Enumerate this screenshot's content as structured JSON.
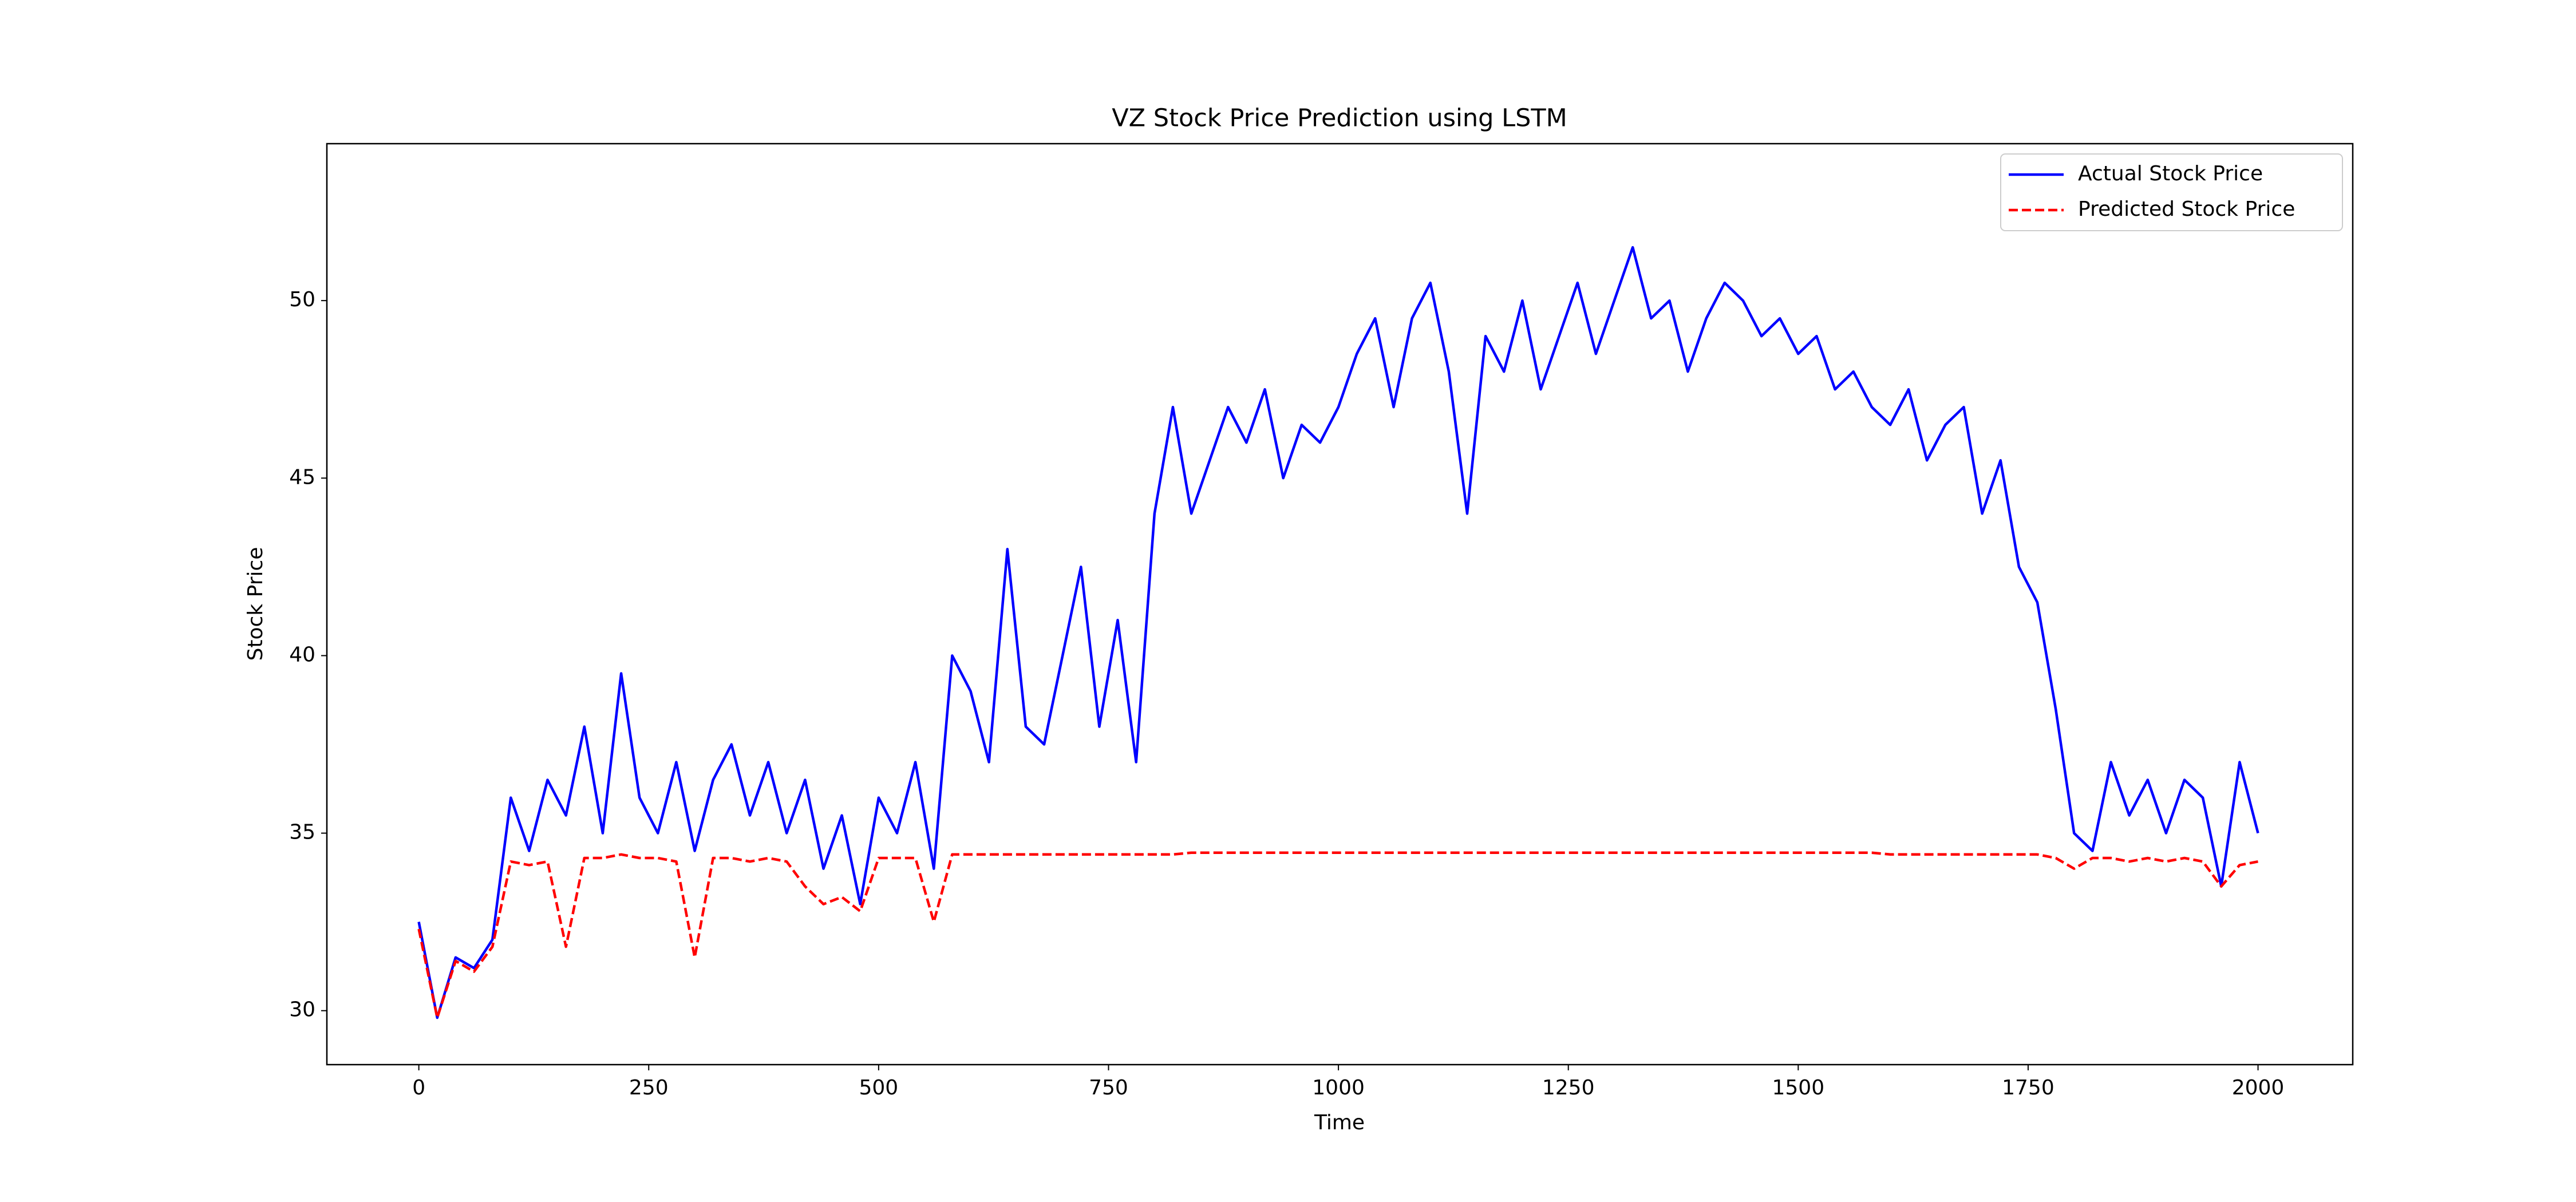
{
  "chart_data": {
    "type": "line",
    "title": "VZ Stock Price Prediction using LSTM",
    "x_label": "Time",
    "y_label": "Stock Price",
    "x": [
      0,
      20,
      40,
      60,
      80,
      100,
      120,
      140,
      160,
      180,
      200,
      220,
      240,
      260,
      280,
      300,
      320,
      340,
      360,
      380,
      400,
      420,
      440,
      460,
      480,
      500,
      520,
      540,
      560,
      580,
      600,
      620,
      640,
      660,
      680,
      700,
      720,
      740,
      760,
      780,
      800,
      820,
      840,
      860,
      880,
      900,
      920,
      940,
      960,
      980,
      1000,
      1020,
      1040,
      1060,
      1080,
      1100,
      1120,
      1140,
      1160,
      1180,
      1200,
      1220,
      1240,
      1260,
      1280,
      1300,
      1320,
      1340,
      1360,
      1380,
      1400,
      1420,
      1440,
      1460,
      1480,
      1500,
      1520,
      1540,
      1560,
      1580,
      1600,
      1620,
      1640,
      1660,
      1680,
      1700,
      1720,
      1740,
      1760,
      1780,
      1800,
      1820,
      1840,
      1860,
      1880,
      1900,
      1920,
      1940,
      1960,
      1980,
      2000
    ],
    "series": [
      {
        "name": "Actual Stock Price",
        "color": "#0000ff",
        "dash": false,
        "values": [
          32.5,
          29.8,
          31.5,
          31.2,
          32,
          36,
          34.5,
          36.5,
          35.5,
          38,
          35,
          39.5,
          36,
          35,
          37,
          34.5,
          36.5,
          37.5,
          35.5,
          37,
          35,
          36.5,
          34,
          35.5,
          33,
          36,
          35,
          37,
          34,
          40,
          39,
          37,
          43,
          38,
          37.5,
          40,
          42.5,
          38,
          41,
          37,
          44,
          47,
          44,
          45.5,
          47,
          46,
          47.5,
          45,
          46.5,
          46,
          47,
          48.5,
          49.5,
          47,
          49.5,
          50.5,
          48,
          44,
          49,
          48,
          50,
          47.5,
          49,
          50.5,
          48.5,
          50,
          51.5,
          49.5,
          50,
          48,
          49.5,
          50.5,
          50,
          49,
          49.5,
          48.5,
          49,
          47.5,
          48,
          47,
          46.5,
          47.5,
          45.5,
          46.5,
          47,
          44,
          45.5,
          42.5,
          41.5,
          38.5,
          35,
          34.5,
          37,
          35.5,
          36.5,
          35,
          36.5,
          36,
          33.5,
          37,
          35
        ]
      },
      {
        "name": "Predicted Stock Price",
        "color": "#ff0000",
        "dash": true,
        "values": [
          32.3,
          29.8,
          31.4,
          31.1,
          31.8,
          34.2,
          34.1,
          34.2,
          31.8,
          34.3,
          34.3,
          34.4,
          34.3,
          34.3,
          34.2,
          31.5,
          34.3,
          34.3,
          34.2,
          34.3,
          34.2,
          33.5,
          33,
          33.2,
          32.8,
          34.3,
          34.3,
          34.3,
          32.5,
          34.4,
          34.4,
          34.4,
          34.4,
          34.4,
          34.4,
          34.4,
          34.4,
          34.4,
          34.4,
          34.4,
          34.4,
          34.4,
          34.45,
          34.45,
          34.45,
          34.45,
          34.45,
          34.45,
          34.45,
          34.45,
          34.45,
          34.45,
          34.45,
          34.45,
          34.45,
          34.45,
          34.45,
          34.45,
          34.45,
          34.45,
          34.45,
          34.45,
          34.45,
          34.45,
          34.45,
          34.45,
          34.45,
          34.45,
          34.45,
          34.45,
          34.45,
          34.45,
          34.45,
          34.45,
          34.45,
          34.45,
          34.45,
          34.45,
          34.45,
          34.45,
          34.4,
          34.4,
          34.4,
          34.4,
          34.4,
          34.4,
          34.4,
          34.4,
          34.4,
          34.3,
          34,
          34.3,
          34.3,
          34.2,
          34.3,
          34.2,
          34.3,
          34.2,
          33.5,
          34.1,
          34.2
        ]
      }
    ],
    "xlim": [
      -100,
      2103
    ],
    "ylim": [
      28.48,
      54.42
    ],
    "xticks": [
      0,
      250,
      500,
      750,
      1000,
      1250,
      1500,
      1750,
      2000
    ],
    "yticks": [
      30,
      35,
      40,
      45,
      50
    ],
    "legend": "upper right"
  }
}
